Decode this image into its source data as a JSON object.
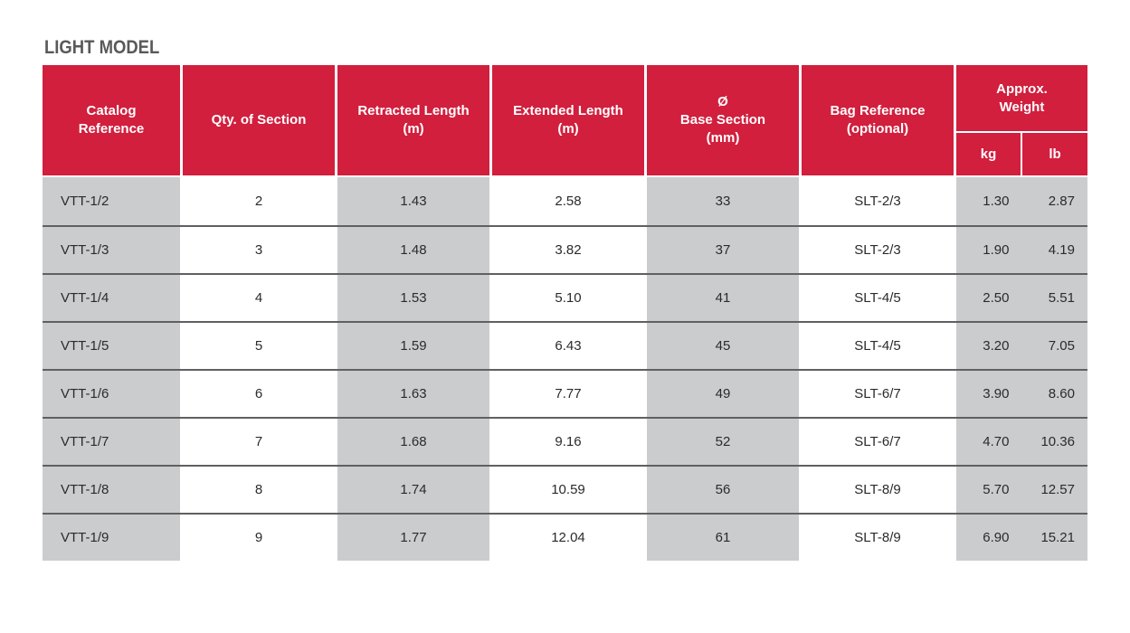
{
  "title": "LIGHT MODEL",
  "colors": {
    "header_red": "#d11f3d",
    "cell_gray": "#cbccce",
    "row_separator": "#606062",
    "title_gray": "#58595b",
    "header_text": "#ffffff",
    "body_text": "#2b2a2c"
  },
  "table": {
    "headers": {
      "catalog": "Catalog\nReference",
      "qty": "Qty. of Section",
      "retracted": "Retracted Length\n(m)",
      "extended": "Extended Length\n(m)",
      "base": "Ø\nBase Section\n(mm)",
      "bag": "Bag Reference\n(optional)",
      "weight": "Approx.\nWeight",
      "kg": "kg",
      "lb": "lb"
    },
    "rows": [
      {
        "catalog": "VTT-1/2",
        "qty": "2",
        "retracted": "1.43",
        "extended": "2.58",
        "base": "33",
        "bag": "SLT-2/3",
        "kg": "1.30",
        "lb": "2.87"
      },
      {
        "catalog": "VTT-1/3",
        "qty": "3",
        "retracted": "1.48",
        "extended": "3.82",
        "base": "37",
        "bag": "SLT-2/3",
        "kg": "1.90",
        "lb": "4.19"
      },
      {
        "catalog": "VTT-1/4",
        "qty": "4",
        "retracted": "1.53",
        "extended": "5.10",
        "base": "41",
        "bag": "SLT-4/5",
        "kg": "2.50",
        "lb": "5.51"
      },
      {
        "catalog": "VTT-1/5",
        "qty": "5",
        "retracted": "1.59",
        "extended": "6.43",
        "base": "45",
        "bag": "SLT-4/5",
        "kg": "3.20",
        "lb": "7.05"
      },
      {
        "catalog": "VTT-1/6",
        "qty": "6",
        "retracted": "1.63",
        "extended": "7.77",
        "base": "49",
        "bag": "SLT-6/7",
        "kg": "3.90",
        "lb": "8.60"
      },
      {
        "catalog": "VTT-1/7",
        "qty": "7",
        "retracted": "1.68",
        "extended": "9.16",
        "base": "52",
        "bag": "SLT-6/7",
        "kg": "4.70",
        "lb": "10.36"
      },
      {
        "catalog": "VTT-1/8",
        "qty": "8",
        "retracted": "1.74",
        "extended": "10.59",
        "base": "56",
        "bag": "SLT-8/9",
        "kg": "5.70",
        "lb": "12.57"
      },
      {
        "catalog": "VTT-1/9",
        "qty": "9",
        "retracted": "1.77",
        "extended": "12.04",
        "base": "61",
        "bag": "SLT-8/9",
        "kg": "6.90",
        "lb": "15.21"
      }
    ]
  }
}
